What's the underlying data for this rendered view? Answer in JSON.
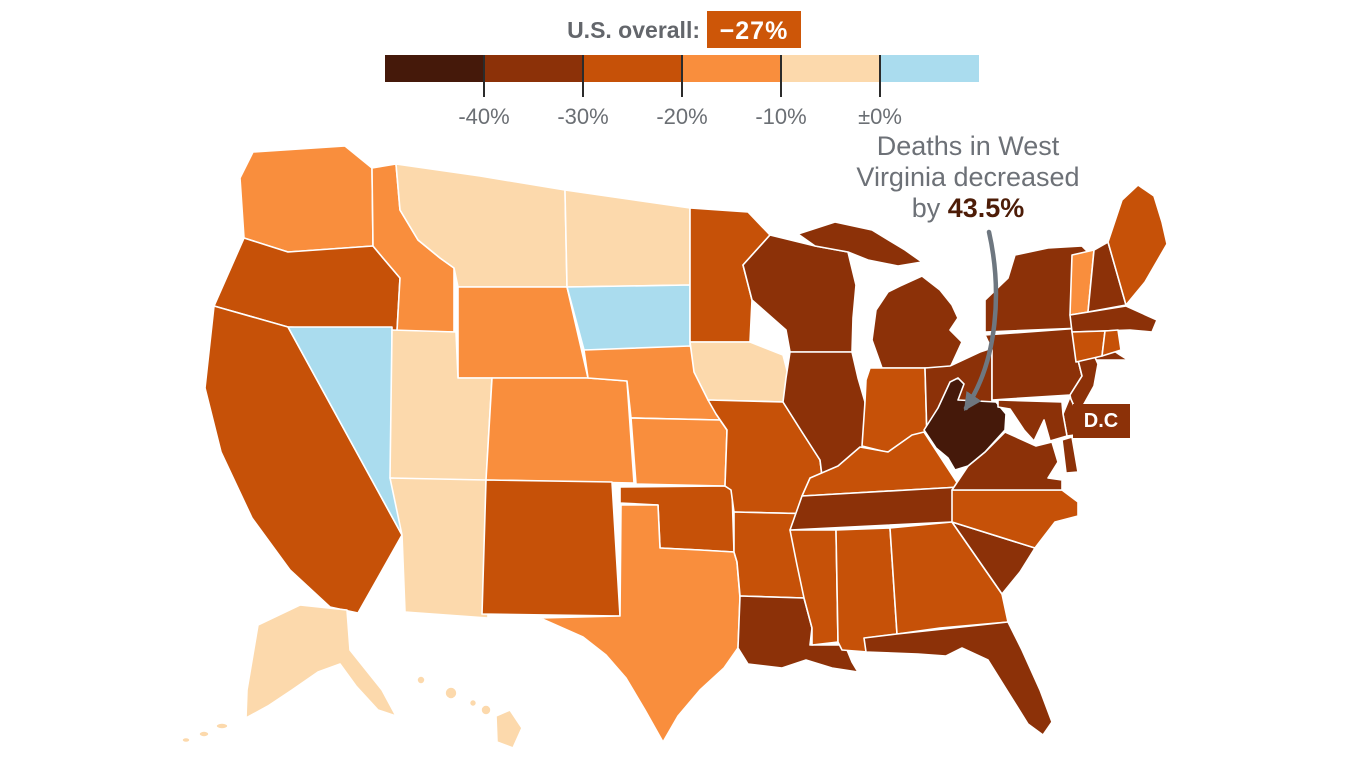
{
  "chart_data": {
    "type": "choropleth",
    "geography": "United States",
    "overall": {
      "label": "U.S. overall:",
      "value": "−27%"
    },
    "legend": {
      "tick_labels": [
        "-40%",
        "-30%",
        "-20%",
        "-10%",
        "±0%"
      ],
      "buckets": [
        {
          "id": "decline_40_plus",
          "color": "#45190a"
        },
        {
          "id": "decline_30_40",
          "color": "#8c3108"
        },
        {
          "id": "decline_20_30",
          "color": "#c65108"
        },
        {
          "id": "decline_10_20",
          "color": "#f98e3d"
        },
        {
          "id": "decline_0_10",
          "color": "#fcd9ac"
        },
        {
          "id": "increase",
          "color": "#aadcee"
        }
      ]
    },
    "annotation": {
      "line1": "Deaths in West",
      "line2": "Virginia decreased",
      "line3_prefix": "by ",
      "line3_value": "43.5%"
    },
    "dc_label": "D.C",
    "states": {
      "WA": "decline_10_20",
      "OR": "decline_20_30",
      "CA": "decline_20_30",
      "NV": "increase",
      "ID": "decline_10_20",
      "MT": "decline_0_10",
      "WY": "decline_10_20",
      "UT": "decline_0_10",
      "AZ": "decline_0_10",
      "CO": "decline_10_20",
      "NM": "decline_20_30",
      "ND": "decline_0_10",
      "SD": "increase",
      "NE": "decline_10_20",
      "KS": "decline_10_20",
      "OK": "decline_20_30",
      "TX": "decline_10_20",
      "MN": "decline_20_30",
      "IA": "decline_0_10",
      "MO": "decline_20_30",
      "AR": "decline_20_30",
      "LA": "decline_30_40",
      "WI": "decline_30_40",
      "IL": "decline_30_40",
      "MS": "decline_20_30",
      "MI": "decline_30_40",
      "IN": "decline_20_30",
      "OH": "decline_30_40",
      "KY": "decline_20_30",
      "TN": "decline_30_40",
      "AL": "decline_20_30",
      "GA": "decline_20_30",
      "FL": "decline_30_40",
      "SC": "decline_30_40",
      "NC": "decline_20_30",
      "VA": "decline_30_40",
      "WV": "decline_40_plus",
      "MD": "decline_30_40",
      "DE": "decline_30_40",
      "DC": "decline_30_40",
      "PA": "decline_30_40",
      "NJ": "decline_30_40",
      "NY": "decline_30_40",
      "CT": "decline_20_30",
      "RI": "decline_20_30",
      "MA": "decline_30_40",
      "VT": "decline_10_20",
      "NH": "decline_30_40",
      "ME": "decline_20_30",
      "AK": "decline_0_10",
      "HI": "decline_0_10"
    }
  },
  "colors": {
    "badge_bg": "#cd5608",
    "arrow": "#6e7780"
  }
}
